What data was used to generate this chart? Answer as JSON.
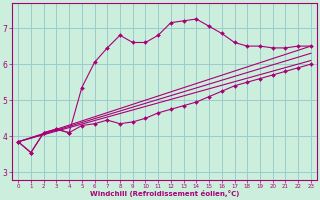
{
  "xlabel": "Windchill (Refroidissement éolien,°C)",
  "bg_color": "#cceedd",
  "line_color": "#aa0077",
  "grid_color": "#99cccc",
  "xlim": [
    -0.5,
    23.5
  ],
  "ylim": [
    2.8,
    7.7
  ],
  "yticks": [
    3,
    4,
    5,
    6,
    7
  ],
  "xticks": [
    0,
    1,
    2,
    3,
    4,
    5,
    6,
    7,
    8,
    9,
    10,
    11,
    12,
    13,
    14,
    15,
    16,
    17,
    18,
    19,
    20,
    21,
    22,
    23
  ],
  "series1_x": [
    0,
    1,
    2,
    3,
    4,
    5,
    6,
    7,
    8,
    9,
    10,
    11,
    12,
    13,
    14,
    15,
    16,
    17,
    18,
    19,
    20,
    21,
    22,
    23
  ],
  "series1_y": [
    3.85,
    3.55,
    4.1,
    4.2,
    4.1,
    4.3,
    4.35,
    4.45,
    4.35,
    4.4,
    4.5,
    4.65,
    4.75,
    4.85,
    4.95,
    5.1,
    5.25,
    5.4,
    5.5,
    5.6,
    5.7,
    5.8,
    5.9,
    6.0
  ],
  "series2_x": [
    0,
    1,
    2,
    3,
    4,
    5,
    6,
    7,
    8,
    9,
    10,
    11,
    12,
    13,
    14,
    15,
    16,
    17,
    18,
    19,
    20,
    21,
    22,
    23
  ],
  "series2_y": [
    3.85,
    3.55,
    4.1,
    4.2,
    4.1,
    5.35,
    6.05,
    6.45,
    6.8,
    6.6,
    6.6,
    6.8,
    7.15,
    7.2,
    7.25,
    7.05,
    6.85,
    6.6,
    6.5,
    6.5,
    6.45,
    6.45,
    6.5,
    6.5
  ],
  "line3": [
    [
      0,
      3.85
    ],
    [
      23,
      6.5
    ]
  ],
  "line4": [
    [
      0,
      3.85
    ],
    [
      23,
      6.3
    ]
  ],
  "line5": [
    [
      0,
      3.85
    ],
    [
      23,
      6.1
    ]
  ]
}
